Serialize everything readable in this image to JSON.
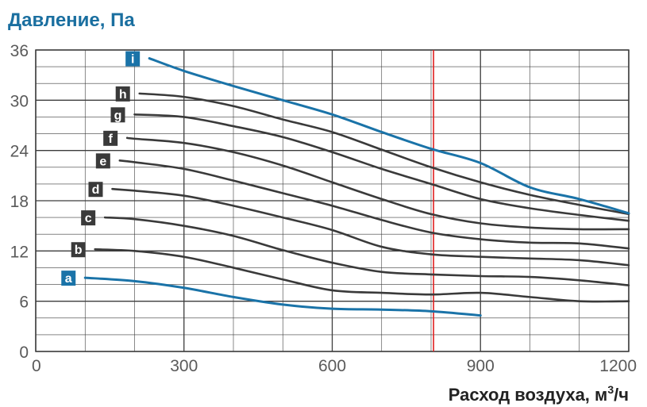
{
  "chart_data": {
    "type": "line",
    "ylabel": "Давление, Па",
    "xlabel": "Расход воздуха, м",
    "xlabel_sup": "3",
    "xlabel_tail": "/ч",
    "xlim": [
      0,
      1200
    ],
    "ylim": [
      0,
      36
    ],
    "x_ticks": [
      0,
      300,
      600,
      900,
      1200
    ],
    "y_ticks": [
      0,
      6,
      12,
      18,
      24,
      30,
      36
    ],
    "x_minor_step": 100,
    "y_minor_step": 2,
    "grid": true,
    "reference_line": {
      "x": 805,
      "color": "#e02020"
    },
    "colors": {
      "dark": "#3a3a3a",
      "blue": "#1a73a8",
      "grid": "#3c3c3c",
      "ylabel": "#1a6fa0",
      "xlabel": "#222222"
    },
    "series": [
      {
        "name": "a",
        "color": "blue",
        "x": [
          100,
          200,
          300,
          400,
          500,
          600,
          700,
          800,
          900
        ],
        "y": [
          8.8,
          8.4,
          7.6,
          6.5,
          5.6,
          5.1,
          5.0,
          4.8,
          4.3
        ]
      },
      {
        "name": "b",
        "color": "dark",
        "x": [
          120,
          200,
          300,
          400,
          500,
          600,
          700,
          800,
          900,
          1000,
          1100,
          1200
        ],
        "y": [
          12.2,
          12.0,
          11.3,
          10.0,
          8.6,
          7.3,
          7.0,
          6.8,
          7.0,
          6.5,
          6.0,
          6.0
        ]
      },
      {
        "name": "c",
        "color": "dark",
        "x": [
          140,
          200,
          300,
          400,
          500,
          600,
          700,
          800,
          900,
          1000,
          1100,
          1200
        ],
        "y": [
          16.0,
          15.8,
          15.0,
          13.8,
          12.1,
          10.6,
          9.5,
          9.2,
          9.0,
          8.9,
          8.5,
          7.9
        ]
      },
      {
        "name": "d",
        "color": "dark",
        "x": [
          155,
          200,
          300,
          400,
          500,
          600,
          700,
          800,
          900,
          1000,
          1100,
          1200
        ],
        "y": [
          19.4,
          19.2,
          18.6,
          17.4,
          16.0,
          14.5,
          12.5,
          11.6,
          11.3,
          11.1,
          10.9,
          10.3
        ]
      },
      {
        "name": "e",
        "color": "dark",
        "x": [
          170,
          200,
          300,
          400,
          500,
          600,
          700,
          800,
          900,
          1000,
          1100,
          1200
        ],
        "y": [
          22.8,
          22.6,
          21.8,
          20.4,
          18.9,
          17.4,
          15.7,
          14.2,
          13.4,
          13.0,
          12.9,
          12.3
        ]
      },
      {
        "name": "f",
        "color": "dark",
        "x": [
          185,
          200,
          300,
          400,
          500,
          600,
          700,
          800,
          900,
          1000,
          1100,
          1200
        ],
        "y": [
          25.5,
          25.4,
          24.9,
          23.8,
          22.2,
          20.2,
          18.2,
          16.4,
          15.3,
          14.8,
          14.6,
          14.6
        ]
      },
      {
        "name": "g",
        "color": "dark",
        "x": [
          200,
          300,
          400,
          500,
          600,
          700,
          800,
          900,
          1000,
          1100,
          1200
        ],
        "y": [
          28.3,
          28.0,
          26.9,
          25.6,
          23.8,
          21.8,
          20.0,
          18.2,
          17.1,
          16.3,
          15.6
        ]
      },
      {
        "name": "h",
        "color": "dark",
        "x": [
          210,
          300,
          400,
          500,
          600,
          700,
          800,
          900,
          1000,
          1100,
          1200
        ],
        "y": [
          30.8,
          30.4,
          29.3,
          27.7,
          26.2,
          24.1,
          22.0,
          20.2,
          18.7,
          17.5,
          16.4
        ]
      },
      {
        "name": "i",
        "color": "blue",
        "x": [
          230,
          300,
          400,
          500,
          600,
          700,
          800,
          900,
          1000,
          1100,
          1200
        ],
        "y": [
          35.0,
          33.5,
          31.7,
          30.0,
          28.3,
          26.2,
          24.2,
          22.5,
          19.6,
          18.2,
          16.5
        ]
      }
    ]
  }
}
